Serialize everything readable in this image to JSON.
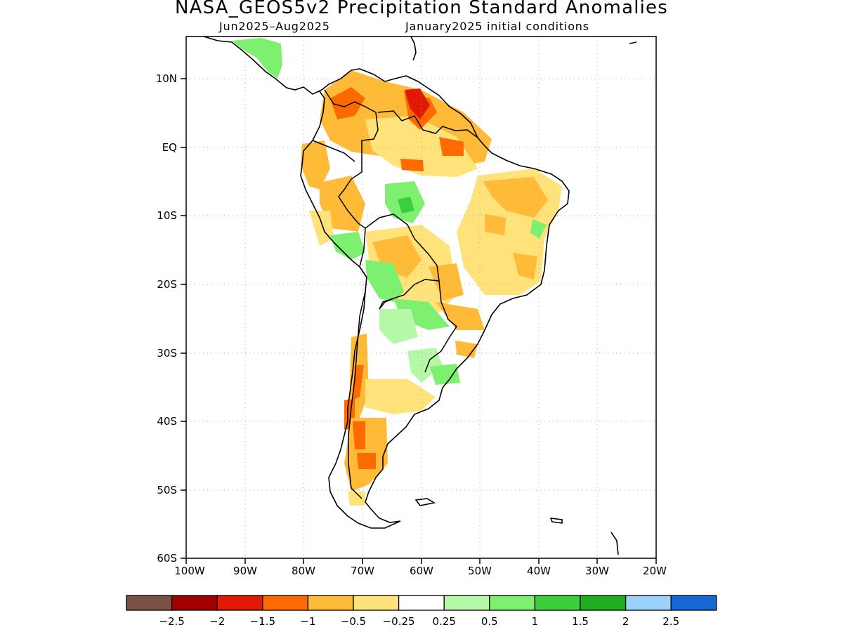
{
  "title": "NASA_GEOS5v2 Precipitation Standard Anomalies",
  "subtitle_left": "Jun2025–Aug2025",
  "subtitle_right": "January2025 initial conditions",
  "map": {
    "region": "South America",
    "lon_range": [
      -100,
      -20
    ],
    "lat_range": [
      -60,
      15
    ],
    "lat_labels": [
      "10N",
      "EQ",
      "10S",
      "20S",
      "30S",
      "40S",
      "50S",
      "60S"
    ],
    "lon_labels": [
      "100W",
      "90W",
      "80W",
      "70W",
      "60W",
      "50W",
      "40W",
      "30W",
      "20W"
    ],
    "gridlines": "dotted"
  },
  "colorbar": {
    "colors": [
      "#7a5245",
      "#a00000",
      "#e01a05",
      "#ff6a00",
      "#ffbb38",
      "#ffe27a",
      "#ffffff",
      "#b4f8a8",
      "#7ef070",
      "#3ccf3c",
      "#1fae1f",
      "#9ad2fa",
      "#1667d6"
    ],
    "labels": [
      "−2.5",
      "−2",
      "−1.5",
      "−1",
      "−0.5",
      "−0.25",
      "0.25",
      "0.5",
      "1",
      "1.5",
      "2",
      "2.5"
    ]
  }
}
